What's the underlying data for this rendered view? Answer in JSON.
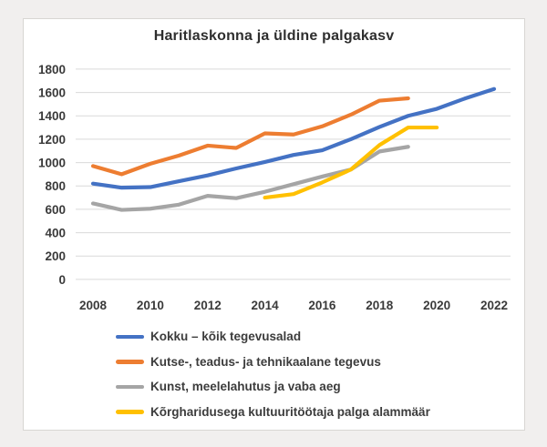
{
  "window": {
    "background_color": "#f1efee",
    "panel_background": "#ffffff",
    "panel_border_color": "#d8d6d3",
    "gridline_color": "#d9d9d9",
    "tick_label_color": "#3a3a3a"
  },
  "chart_data": {
    "type": "line",
    "title": "Haritlaskonna ja üldine palgakasv",
    "xlabel": "",
    "ylabel": "",
    "x": [
      2008,
      2009,
      2010,
      2011,
      2012,
      2013,
      2014,
      2015,
      2016,
      2017,
      2018,
      2019,
      2020,
      2021,
      2022
    ],
    "x_tick_labels": [
      "2008",
      "2010",
      "2012",
      "2014",
      "2016",
      "2018",
      "2020",
      "2022"
    ],
    "y_ticks": [
      0,
      200,
      400,
      600,
      800,
      1000,
      1200,
      1400,
      1600,
      1800
    ],
    "ylim": [
      0,
      1800
    ],
    "xlim": [
      2008,
      2022
    ],
    "grid": "horizontal",
    "legend_position": "bottom-left",
    "series": [
      {
        "name": "Kokku – kõik tegevusalad",
        "color": "#4472C4",
        "values": [
          820,
          785,
          790,
          840,
          890,
          950,
          1005,
          1065,
          1105,
          1200,
          1305,
          1400,
          1460,
          1550,
          1630
        ]
      },
      {
        "name": "Kutse-, teadus- ja tehnikaalane tegevus",
        "color": "#ED7D31",
        "values": [
          970,
          900,
          990,
          1060,
          1145,
          1125,
          1250,
          1240,
          1310,
          1410,
          1530,
          1550,
          null,
          null,
          null
        ]
      },
      {
        "name": "Kunst, meelelahutus ja vaba aeg",
        "color": "#A5A5A5",
        "values": [
          650,
          595,
          605,
          640,
          715,
          695,
          750,
          815,
          880,
          940,
          1095,
          1135,
          null,
          null,
          null
        ]
      },
      {
        "name": "Kõrgharidusega kultuuritöötaja palga alammäär",
        "color": "#FFC000",
        "values": [
          null,
          null,
          null,
          null,
          null,
          null,
          700,
          730,
          830,
          940,
          1150,
          1300,
          1300,
          null,
          null
        ]
      }
    ]
  }
}
